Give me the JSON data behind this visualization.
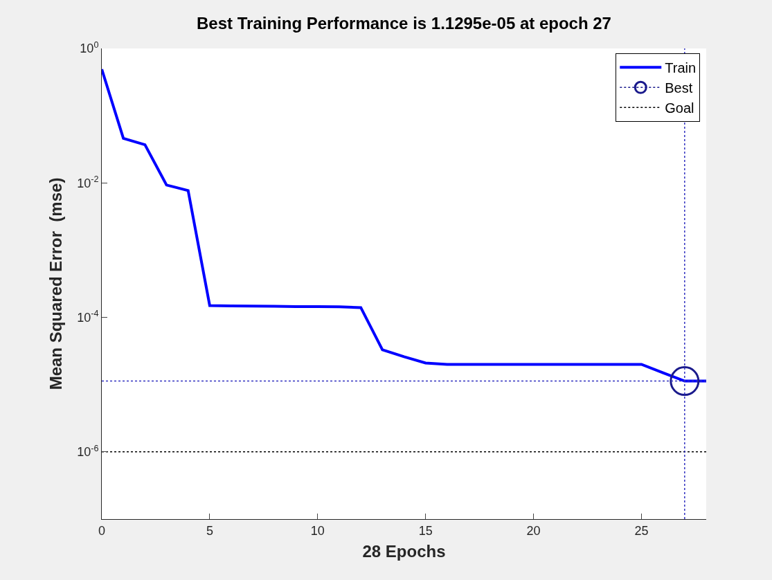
{
  "chart_data": {
    "type": "line",
    "title": "Best Training Performance is 1.1295e-05 at epoch 27",
    "xlabel": "28 Epochs",
    "ylabel": "Mean Squared Error  (mse)",
    "log": "y",
    "grid": false,
    "legend": "top right",
    "xlim": [
      0,
      28
    ],
    "xticks": [
      0,
      5,
      10,
      15,
      20,
      25
    ],
    "ylim": [
      1e-07,
      1
    ],
    "yticks": [
      {
        "value": 1,
        "label": "10$^{0}$"
      },
      {
        "value": 0.01,
        "label": "10$^{-2}$"
      },
      {
        "value": 0.0001,
        "label": "10$^{-4}$"
      },
      {
        "value": 1e-06,
        "label": "10$^{-6}$"
      }
    ],
    "series": [
      {
        "name": "Train",
        "color": "#0000ff",
        "line_style": "solid",
        "marker": "none",
        "x": [
          0,
          1,
          2,
          3,
          4,
          5,
          6,
          7,
          8,
          9,
          10,
          11,
          12,
          13,
          14,
          15,
          16,
          17,
          18,
          19,
          20,
          21,
          22,
          23,
          24,
          25,
          26,
          27,
          28
        ],
        "values": [
          0.49,
          0.046,
          0.037,
          0.0093,
          0.0077,
          0.00015,
          0.000148,
          0.000147,
          0.000146,
          0.000145,
          0.000145,
          0.000144,
          0.00014,
          3.3e-05,
          2.6e-05,
          2.1e-05,
          2e-05,
          2e-05,
          2e-05,
          2e-05,
          2e-05,
          2e-05,
          2e-05,
          2e-05,
          2e-05,
          2e-05,
          1.5e-05,
          1.1295e-05,
          1.1295e-05
        ]
      },
      {
        "name": "Best",
        "color": "#1a1a8c",
        "type": "scatter",
        "line_style": "dotted",
        "marker": "circle",
        "x": [
          27
        ],
        "values": [
          1.1295e-05
        ]
      },
      {
        "name": "Goal",
        "color": "#000000",
        "line_style": "dotted",
        "marker": "none",
        "x": [
          0,
          28
        ],
        "values": [
          1e-06,
          1e-06
        ]
      }
    ],
    "ref_lines": [
      {
        "axis": "x",
        "value": 27,
        "color": "#3030c0",
        "line_style": "dotted"
      },
      {
        "axis": "y",
        "value": 1.1295e-05,
        "color": "#3030c0",
        "line_style": "dotted"
      }
    ]
  }
}
